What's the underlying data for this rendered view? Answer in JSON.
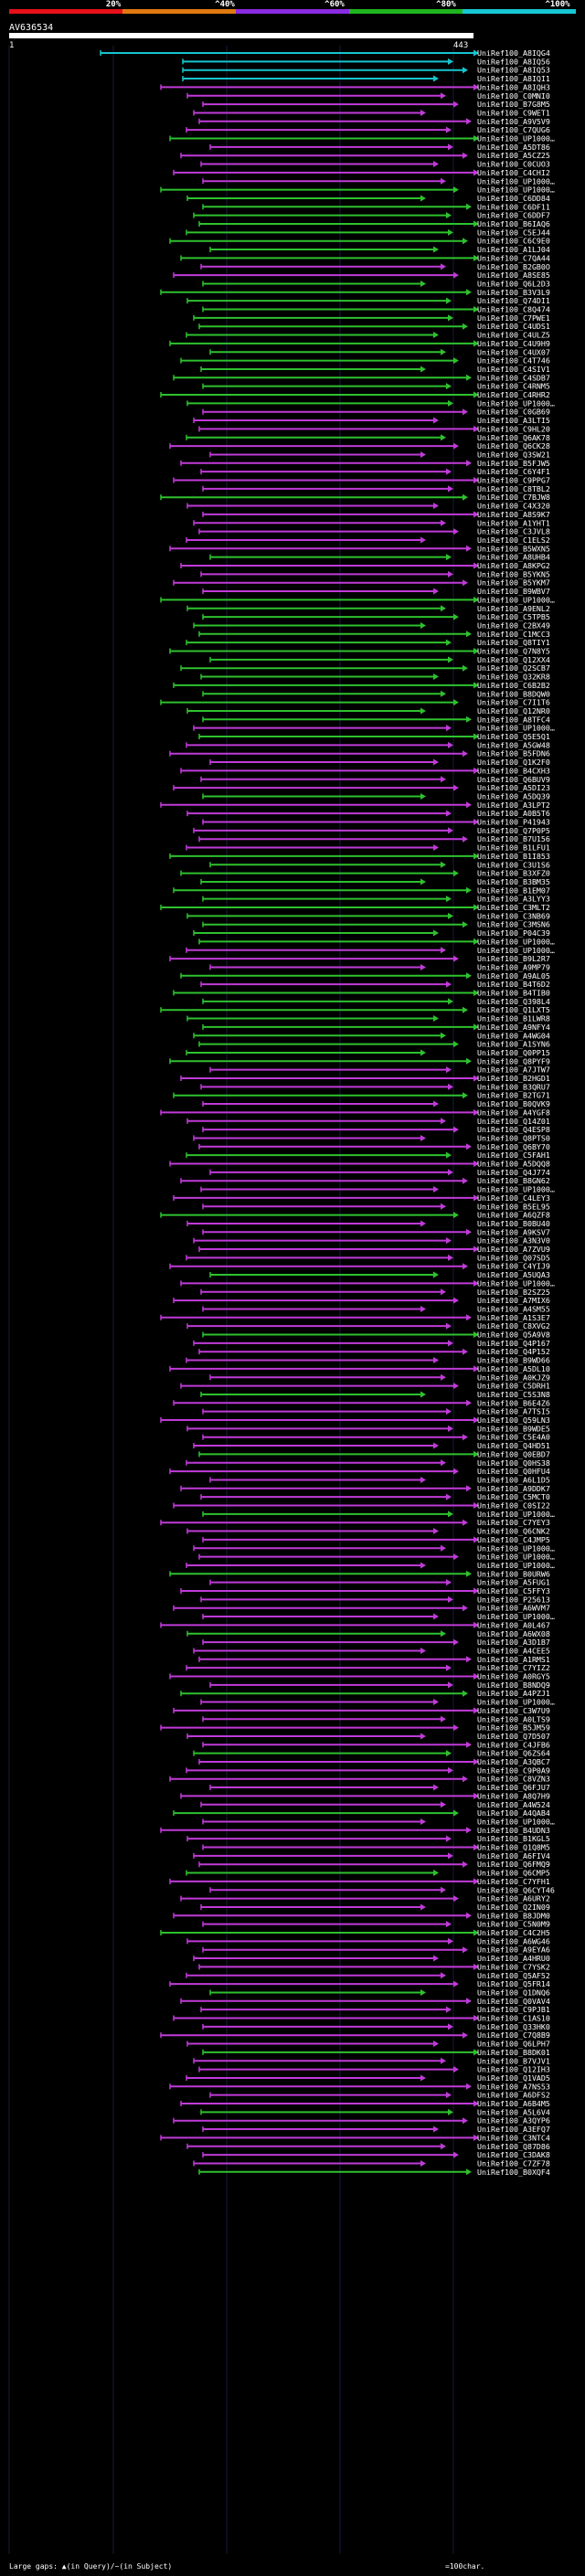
{
  "query_id": "AV636534",
  "scale": {
    "labels": [
      "20%",
      "^40%",
      "^60%",
      "^80%",
      "^100%"
    ],
    "colors": [
      "#e8101a",
      "#e07a10",
      "#8a2be2",
      "#1fb51f",
      "#17c8d4"
    ]
  },
  "query_range": {
    "start": "1",
    "end": "443"
  },
  "series_colors": {
    "cyan": "#16c5cf",
    "green": "#2ec12e",
    "magenta": "#c03bd8"
  },
  "footer": {
    "gaps_text": "Large gaps: ▲(in Query)/~(in Subject)",
    "legend_text": "=100char."
  },
  "chart_data": {
    "type": "bar",
    "x_unit": "query residue",
    "x_range": [
      1,
      443
    ],
    "labels": [
      "UniRef100_A8IQG4",
      "UniRef100_A8IQ56",
      "UniRef100_A8IQ53",
      "UniRef100_A8IQI1",
      "UniRef100_A8IQH3",
      "UniRef100_C0MNI0",
      "UniRef100_B7G8M5",
      "UniRef100_C9WET1",
      "UniRef100_A9V5V9",
      "UniRef100_C7QUG6",
      "UniRef100_UP1000…",
      "UniRef100_A5DT86",
      "UniRef100_A5CZ25",
      "UniRef100_C0CUO3",
      "UniRef100_C4CHI2",
      "UniRef100_UP1000…",
      "UniRef100_UP1000…",
      "UniRef100_C6DD84",
      "UniRef100_C6DF11",
      "UniRef100_C6DDF7",
      "UniRef100_B6IAQ6",
      "UniRef100_C5EJ44",
      "UniRef100_C6C9E0",
      "UniRef100_A1LJ04",
      "UniRef100_C7QA44",
      "UniRef100_B2GB0O",
      "UniRef100_A8SE85",
      "UniRef100_Q6L2D3",
      "UniRef100_B3V3L9",
      "UniRef100_Q74DI1",
      "UniRef100_C8Q474",
      "UniRef100_C7PWE1",
      "UniRef100_C4UDS1",
      "UniRef100_C4ULZ5",
      "UniRef100_C4U9H9",
      "UniRef100_C4UX07",
      "UniRef100_C4T746",
      "UniRef100_C4SIV1",
      "UniRef100_C4SDB7",
      "UniRef100_C4RNM5",
      "UniRef100_C4RHR2",
      "UniRef100_UP1000…",
      "UniRef100_C0GB69",
      "UniRef100_A3LTI5",
      "UniRef100_C9HL20",
      "UniRef100_Q6AK78",
      "UniRef100_Q6CK28",
      "UniRef100_Q3SW21",
      "UniRef100_B5FJW5",
      "UniRef100_C6Y4F1",
      "UniRef100_C9PPG7",
      "UniRef100_C8TBL2",
      "UniRef100_C7BJW8",
      "UniRef100_C4X320",
      "UniRef100_A8S9K7",
      "UniRef100_A1YHT1",
      "UniRef100_C3JVL8",
      "UniRef100_C1ELS2",
      "UniRef100_B5WXN5",
      "UniRef100_A8UHB4",
      "UniRef100_A8KPG2",
      "UniRef100_B5YKN5",
      "UniRef100_B5YKM7",
      "UniRef100_B9WBV7",
      "UniRef100_UP1000…",
      "UniRef100_A9ENL2",
      "UniRef100_C5TPB5",
      "UniRef100_C2BX49",
      "UniRef100_C1MCC3",
      "UniRef100_Q8TIY1",
      "UniRef100_Q7N8Y5",
      "UniRef100_Q12XX4",
      "UniRef100_Q2SCB7",
      "UniRef100_Q32KR8",
      "UniRef100_C6B2B2",
      "UniRef100_B8DQW0",
      "UniRef100_C7I1T6",
      "UniRef100_Q12NR0",
      "UniRef100_A8TFC4",
      "UniRef100_UP1000…",
      "UniRef100_Q5E5Q1",
      "UniRef100_A5GW48",
      "UniRef100_B5FDN6",
      "UniRef100_Q1K2F0",
      "UniRef100_B4CXH3",
      "UniRef100_Q6BUV9",
      "UniRef100_A5DI23",
      "UniRef100_A5DQ39",
      "UniRef100_A3LPT2",
      "UniRef100_A0B5T6",
      "UniRef100_P41943",
      "UniRef100_Q7P0P5",
      "UniRef100_B7U156",
      "UniRef100_B1LFU1",
      "UniRef100_B1I853",
      "UniRef100_C3U1S6",
      "UniRef100_B3XFZ0",
      "UniRef100_B3BM35",
      "UniRef100_B1EM07",
      "UniRef100_A3LYY3",
      "UniRef100_C3MLT2",
      "UniRef100_C3NB69",
      "UniRef100_C3MSN6",
      "UniRef100_P04C39",
      "UniRef100_UP1000…",
      "UniRef100_UP1000…",
      "UniRef100_B9L2R7",
      "UniRef100_A9MP79",
      "UniRef100_A9AL05",
      "UniRef100_B4T6D2",
      "UniRef100_B4TIB0",
      "UniRef100_Q398L4",
      "UniRef100_Q1LXT5",
      "UniRef100_B1LWR8",
      "UniRef100_A9NFY4",
      "UniRef100_A4WG04",
      "UniRef100_A1SYN6",
      "UniRef100_Q0PP15",
      "UniRef100_Q8PYF9",
      "UniRef100_A7JTW7",
      "UniRef100_B2HGD1",
      "UniRef100_B3QRU7",
      "UniRef100_B2TG71",
      "UniRef100_B0QVK9",
      "UniRef100_A4YGF8",
      "UniRef100_Q14Z01",
      "UniRef100_Q4ESP8",
      "UniRef100_Q8PTS0",
      "UniRef100_Q6BY70",
      "UniRef100_C5FAH1",
      "UniRef100_A5DQQ8",
      "UniRef100_Q4J774",
      "UniRef100_B8GN62",
      "UniRef100_UP1000…",
      "UniRef100_C4LEY3",
      "UniRef100_B5EL95",
      "UniRef100_A6QZF8",
      "UniRef100_B0BU40",
      "UniRef100_A9KSV7",
      "UniRef100_A3N3V0",
      "UniRef100_A7ZVU9",
      "UniRef100_Q07SD5",
      "UniRef100_C4YIJ9",
      "UniRef100_A5UQA3",
      "UniRef100_UP1000…",
      "UniRef100_B2SZ25",
      "UniRef100_A7MIX6",
      "UniRef100_A4SM55",
      "UniRef100_A1S3E7",
      "UniRef100_C8XVG2",
      "UniRef100_Q5A9V8",
      "UniRef100_Q4P167",
      "UniRef100_Q4P152",
      "UniRef100_B9WD66",
      "UniRef100_A5DL10",
      "UniRef100_A0KJZ9",
      "UniRef100_C5DRH1",
      "UniRef100_C5S3N8",
      "UniRef100_B6E4Z6",
      "UniRef100_A7TSI5",
      "UniRef100_Q59LN3",
      "UniRef100_B9WDE5",
      "UniRef100_C5E4A0",
      "UniRef100_Q4HD51",
      "UniRef100_Q0EBD7",
      "UniRef100_Q0HS38",
      "UniRef100_Q0HFU4",
      "UniRef100_A6L1D5",
      "UniRef100_A9DDK7",
      "UniRef100_C5MCT0",
      "UniRef100_C0SI22",
      "UniRef100_UP1000…",
      "UniRef100_C7YEY3",
      "UniRef100_Q6CNK2",
      "UniRef100_C4JMP5",
      "UniRef100_UP1000…",
      "UniRef100_UP1000…",
      "UniRef100_UP1000…",
      "UniRef100_B0URW6",
      "UniRef100_A5FUG1",
      "UniRef100_C5FFY3",
      "UniRef100_P25613",
      "UniRef100_A6WVM7",
      "UniRef100_UP1000…",
      "UniRef100_A0L467",
      "UniRef100_A6WX08",
      "UniRef100_A3D1B7",
      "UniRef100_A4CEE5",
      "UniRef100_A1RMS1",
      "UniRef100_C7YIZ2",
      "UniRef100_A0RGY5",
      "UniRef100_B8NDQ9",
      "UniRef100_A4PZJ1",
      "UniRef100_UP1000…",
      "UniRef100_C3W7U9",
      "UniRef100_A0LTS9",
      "UniRef100_B5JM59",
      "UniRef100_Q7D507",
      "UniRef100_C4JFB6",
      "UniRef100_Q6ZS64",
      "UniRef100_A3QBC7",
      "UniRef100_C9P0A9",
      "UniRef100_C8VZN3",
      "UniRef100_Q6FJU7",
      "UniRef100_A8Q7H9",
      "UniRef100_A4W524",
      "UniRef100_A4QAB4",
      "UniRef100_UP1000…",
      "UniRef100_B4UDN3",
      "UniRef100_B1KGL5",
      "UniRef100_Q1Q8M5",
      "UniRef100_A6FIV4",
      "UniRef100_Q6FMQ9",
      "UniRef100_Q6CMP5",
      "UniRef100_C7YFH1",
      "UniRef100_Q6CYT46",
      "UniRef100_A6URY2",
      "UniRef100_Q2IN09",
      "UniRef100_B8JDM0",
      "UniRef100_C5N0M9",
      "UniRef100_C4C2H5",
      "UniRef100_A6WG46",
      "UniRef100_A9EYA6",
      "UniRef100_A4HRU0",
      "UniRef100_C7YSK2",
      "UniRef100_Q5AF52",
      "UniRef100_Q5FR14",
      "UniRef100_Q1DNQ6",
      "UniRef100_Q0VAV4",
      "UniRef100_C9PJB1",
      "UniRef100_C1AS10",
      "UniRef100_Q33HK0",
      "UniRef100_C7Q8B9",
      "UniRef100_Q6LPH7",
      "UniRef100_B8DK01",
      "UniRef100_B7VJV1",
      "UniRef100_Q12IH3",
      "UniRef100_Q1VAD5",
      "UniRef100_A7NS53",
      "UniRef100_A6DFS2",
      "UniRef100_A6B4M5",
      "UniRef100_A5L6V4",
      "UniRef100_A3QYP6",
      "UniRef100_A3EFQ7",
      "UniRef100_C3NTC4",
      "UniRef100_Q87D86",
      "UniRef100_C3DAK8",
      "UniRef100_C7ZF78",
      "UniRef100_B0XQF4"
    ]
  }
}
